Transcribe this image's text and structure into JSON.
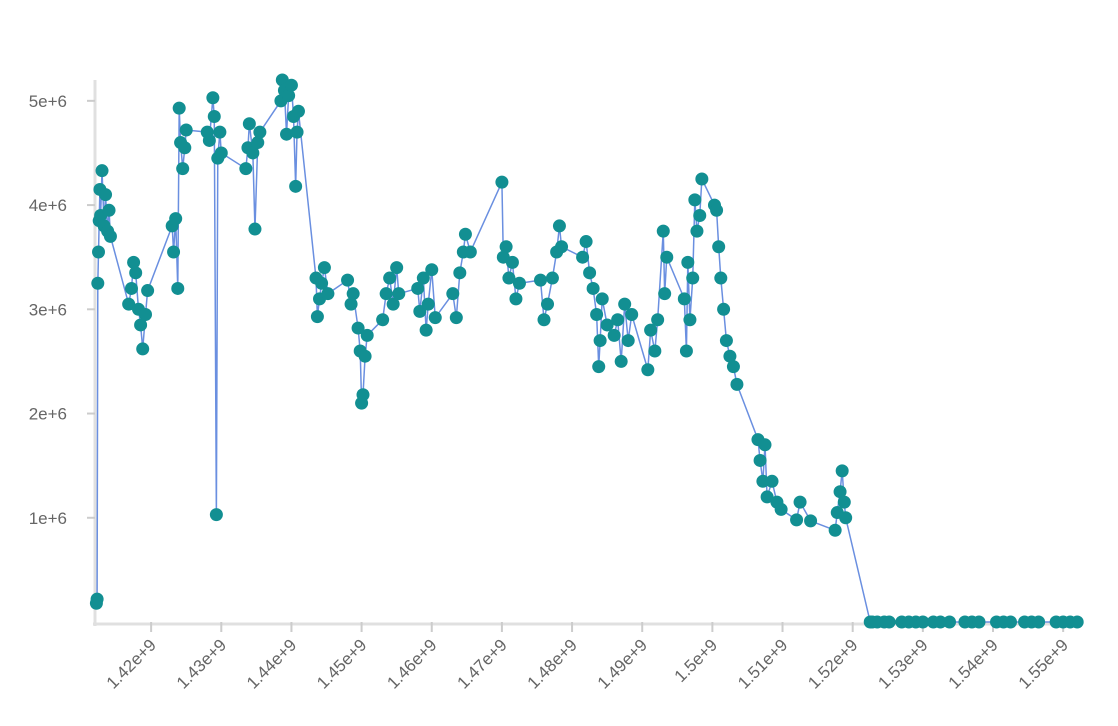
{
  "chart_data": {
    "type": "line",
    "markers": true,
    "line_color": "#6a8fe0",
    "marker_color": "#128f92",
    "xlim": [
      1412000000,
      1552400000
    ],
    "ylim": [
      0,
      5200000
    ],
    "xticks": [
      {
        "value": 1420000000,
        "label": "1.42e+9"
      },
      {
        "value": 1430000000,
        "label": "1.43e+9"
      },
      {
        "value": 1440000000,
        "label": "1.44e+9"
      },
      {
        "value": 1450000000,
        "label": "1.45e+9"
      },
      {
        "value": 1460000000,
        "label": "1.46e+9"
      },
      {
        "value": 1470000000,
        "label": "1.47e+9"
      },
      {
        "value": 1480000000,
        "label": "1.48e+9"
      },
      {
        "value": 1490000000,
        "label": "1.49e+9"
      },
      {
        "value": 1500000000,
        "label": "1.5e+9"
      },
      {
        "value": 1510000000,
        "label": "1.51e+9"
      },
      {
        "value": 1520000000,
        "label": "1.52e+9"
      },
      {
        "value": 1530000000,
        "label": "1.53e+9"
      },
      {
        "value": 1540000000,
        "label": "1.54e+9"
      },
      {
        "value": 1550000000,
        "label": "1.55e+9"
      }
    ],
    "yticks": [
      {
        "value": 1000000,
        "label": "1e+6"
      },
      {
        "value": 2000000,
        "label": "2e+6"
      },
      {
        "value": 3000000,
        "label": "3e+6"
      },
      {
        "value": 4000000,
        "label": "4e+6"
      },
      {
        "value": 5000000,
        "label": "5e+6"
      }
    ],
    "x": [
      1412200000,
      1412300000,
      1412400000,
      1412500000,
      1412600000,
      1412700000,
      1412800000,
      1413000000,
      1413300000,
      1413500000,
      1413800000,
      1414000000,
      1414200000,
      1416800000,
      1417200000,
      1417500000,
      1417800000,
      1418200000,
      1418500000,
      1418800000,
      1419200000,
      1419500000,
      1423000000,
      1423200000,
      1423500000,
      1423800000,
      1424000000,
      1424200000,
      1424500000,
      1424800000,
      1425000000,
      1428000000,
      1428300000,
      1428800000,
      1429000000,
      1429300000,
      1429500000,
      1429800000,
      1430000000,
      1433500000,
      1433800000,
      1434000000,
      1434500000,
      1434800000,
      1435200000,
      1435500000,
      1438500000,
      1438700000,
      1439000000,
      1439300000,
      1439600000,
      1440000000,
      1440300000,
      1440600000,
      1440800000,
      1441000000,
      1443500000,
      1443700000,
      1444000000,
      1444300000,
      1444700000,
      1445200000,
      1448000000,
      1448500000,
      1448800000,
      1449500000,
      1449800000,
      1450000000,
      1450200000,
      1450500000,
      1450800000,
      1453000000,
      1453500000,
      1454000000,
      1454500000,
      1455000000,
      1455300000,
      1458000000,
      1458300000,
      1458800000,
      1459200000,
      1459500000,
      1460000000,
      1460500000,
      1463000000,
      1463500000,
      1464000000,
      1464500000,
      1464800000,
      1465500000,
      1470000000,
      1470200000,
      1470600000,
      1471000000,
      1471500000,
      1472000000,
      1472500000,
      1475500000,
      1476000000,
      1476500000,
      1477200000,
      1477800000,
      1478200000,
      1478500000,
      1481500000,
      1482000000,
      1482500000,
      1483000000,
      1483500000,
      1483800000,
      1484000000,
      1484300000,
      1485000000,
      1486000000,
      1486500000,
      1487000000,
      1487500000,
      1488000000,
      1488500000,
      1490800000,
      1491200000,
      1491800000,
      1492200000,
      1493000000,
      1493200000,
      1493500000,
      1496000000,
      1496300000,
      1496500000,
      1496800000,
      1497200000,
      1497500000,
      1497800000,
      1498200000,
      1498500000,
      1500300000,
      1500600000,
      1500900000,
      1501200000,
      1501600000,
      1502000000,
      1502500000,
      1503000000,
      1503500000,
      1506500000,
      1506800000,
      1507200000,
      1507500000,
      1507800000,
      1508500000,
      1509200000,
      1509800000,
      1512000000,
      1512500000,
      1514000000,
      1517500000,
      1517800000,
      1518200000,
      1518500000,
      1518800000,
      1519000000,
      1522500000,
      1522800000,
      1523500000,
      1524500000,
      1525200000,
      1527000000,
      1528000000,
      1529000000,
      1530000000,
      1531500000,
      1532500000,
      1533800000,
      1536000000,
      1537000000,
      1538000000,
      1540500000,
      1541500000,
      1542500000,
      1544500000,
      1545500000,
      1546500000,
      1549000000,
      1550000000,
      1551000000,
      1552000000
    ],
    "values": [
      180000,
      220000,
      3250000,
      3550000,
      3850000,
      4150000,
      3900000,
      4330000,
      3800000,
      4100000,
      3750000,
      3950000,
      3700000,
      3050000,
      3200000,
      3450000,
      3350000,
      3000000,
      2850000,
      2620000,
      2950000,
      3180000,
      3800000,
      3550000,
      3870000,
      3200000,
      4930000,
      4600000,
      4350000,
      4550000,
      4720000,
      4700000,
      4620000,
      5030000,
      4850000,
      1030000,
      4450000,
      4700000,
      4500000,
      4350000,
      4550000,
      4780000,
      4500000,
      3770000,
      4600000,
      4700000,
      5000000,
      5200000,
      5100000,
      4680000,
      5050000,
      5150000,
      4850000,
      4180000,
      4700000,
      4900000,
      3300000,
      2930000,
      3100000,
      3250000,
      3400000,
      3150000,
      3280000,
      3050000,
      3150000,
      2820000,
      2600000,
      2100000,
      2180000,
      2550000,
      2750000,
      2900000,
      3150000,
      3300000,
      3050000,
      3400000,
      3150000,
      3200000,
      2980000,
      3300000,
      2800000,
      3050000,
      3380000,
      2920000,
      3150000,
      2920000,
      3350000,
      3550000,
      3720000,
      3550000,
      4220000,
      3500000,
      3600000,
      3300000,
      3450000,
      3100000,
      3250000,
      3280000,
      2900000,
      3050000,
      3300000,
      3550000,
      3800000,
      3600000,
      3500000,
      3650000,
      3350000,
      3200000,
      2950000,
      2450000,
      2700000,
      3100000,
      2850000,
      2750000,
      2900000,
      2500000,
      3050000,
      2700000,
      2950000,
      2420000,
      2800000,
      2600000,
      2900000,
      3750000,
      3150000,
      3500000,
      3100000,
      2600000,
      3450000,
      2900000,
      3300000,
      4050000,
      3750000,
      3900000,
      4250000,
      4000000,
      3950000,
      3600000,
      3300000,
      3000000,
      2700000,
      2550000,
      2450000,
      2280000,
      1750000,
      1550000,
      1350000,
      1700000,
      1200000,
      1350000,
      1150000,
      1080000,
      980000,
      1150000,
      970000,
      880000,
      1050000,
      1250000,
      1450000,
      1150000,
      1000000,
      0,
      0,
      0,
      0,
      0,
      0,
      0,
      0,
      0,
      0,
      0,
      0,
      0,
      0,
      0,
      0,
      0,
      0,
      0,
      0,
      0,
      0,
      0,
      0,
      0
    ]
  }
}
